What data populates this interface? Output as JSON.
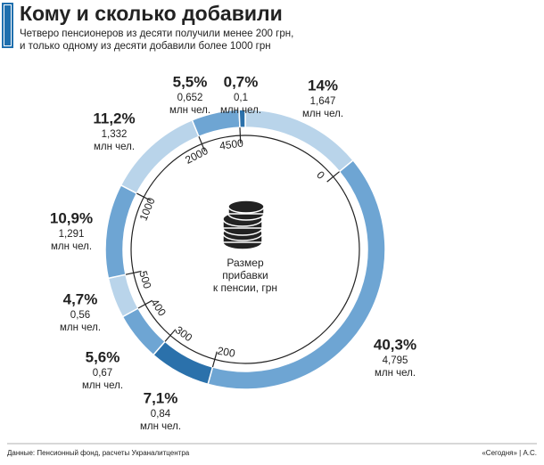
{
  "chart_data": {
    "type": "donut",
    "title": "Кому и сколько добавили",
    "subtitle": [
      "Четверо пенсионеров из десяти получили менее 200 грн,",
      "и только одному из десяти добавили более 1000 грн"
    ],
    "values": [
      14,
      40.3,
      7.1,
      5.6,
      4.7,
      10.9,
      11.2,
      5.5,
      0.7
    ],
    "value_labels": [
      "14%",
      "40,3%",
      "7,1%",
      "5,6%",
      "4,7%",
      "10,9%",
      "11,2%",
      "5,5%",
      "0,7%"
    ],
    "counts": [
      1.647,
      4.795,
      0.84,
      0.67,
      0.56,
      1.291,
      1.332,
      0.652,
      0.1
    ],
    "count_labels": [
      "1,647",
      "4,795",
      "0,84",
      "0,67",
      "0,56",
      "1,291",
      "1,332",
      "0,652",
      "0,1"
    ],
    "unit": "млн чел.",
    "colors": [
      "#b9d4ea",
      "#6ea5d3",
      "#2b71ab",
      "#6ea5d3",
      "#b9d4ea",
      "#6ea5d3",
      "#b9d4ea",
      "#6ea5d3",
      "#2b71ab"
    ],
    "scale": [
      0,
      200,
      300,
      400,
      500,
      1000,
      2000,
      4500
    ],
    "center_label": [
      "Размер",
      "прибавки",
      "к пенсии, грн"
    ],
    "source": "Данные: Пенсионный фонд, расчеты Украналитцентра",
    "credit": "«Сегодня» | А.С."
  }
}
